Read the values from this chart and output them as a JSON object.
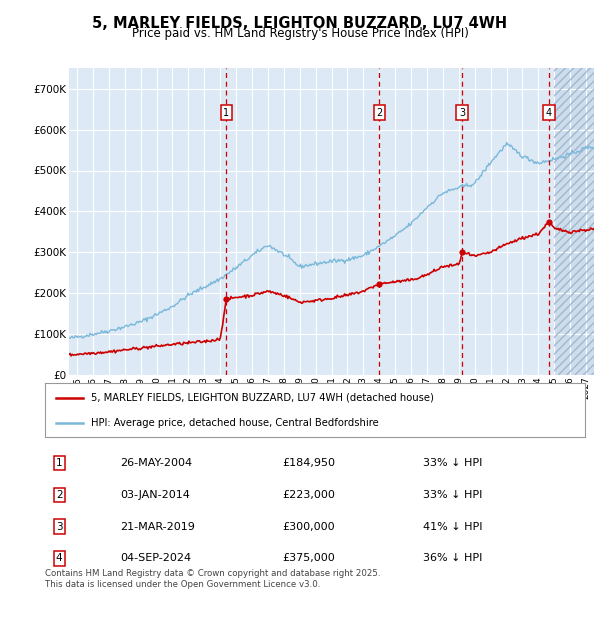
{
  "title": "5, MARLEY FIELDS, LEIGHTON BUZZARD, LU7 4WH",
  "subtitle": "Price paid vs. HM Land Registry's House Price Index (HPI)",
  "hpi_color": "#7ab8d9",
  "price_color": "#cc0000",
  "vline_color": "#cc0000",
  "background_color": "#ddeaf6",
  "ylabel_ticks": [
    "£0",
    "£100K",
    "£200K",
    "£300K",
    "£400K",
    "£500K",
    "£600K",
    "£700K"
  ],
  "ytick_values": [
    0,
    100000,
    200000,
    300000,
    400000,
    500000,
    600000,
    700000
  ],
  "ylim": [
    0,
    750000
  ],
  "xlim_start": 1994.5,
  "xlim_end": 2027.5,
  "future_shade_start": 2025.0,
  "transactions": [
    {
      "num": 1,
      "date": "26-MAY-2004",
      "year": 2004.39,
      "price": 184950,
      "pct": "33%",
      "dir": "↓"
    },
    {
      "num": 2,
      "date": "03-JAN-2014",
      "year": 2014.01,
      "price": 223000,
      "pct": "33%",
      "dir": "↓"
    },
    {
      "num": 3,
      "date": "21-MAR-2019",
      "year": 2019.21,
      "price": 300000,
      "pct": "41%",
      "dir": "↓"
    },
    {
      "num": 4,
      "date": "04-SEP-2024",
      "year": 2024.67,
      "price": 375000,
      "pct": "36%",
      "dir": "↓"
    }
  ],
  "legend_entries": [
    "5, MARLEY FIELDS, LEIGHTON BUZZARD, LU7 4WH (detached house)",
    "HPI: Average price, detached house, Central Bedfordshire"
  ],
  "footer": "Contains HM Land Registry data © Crown copyright and database right 2025.\nThis data is licensed under the Open Government Licence v3.0.",
  "xtick_years": [
    1995,
    1996,
    1997,
    1998,
    1999,
    2000,
    2001,
    2002,
    2003,
    2004,
    2005,
    2006,
    2007,
    2008,
    2009,
    2010,
    2011,
    2012,
    2013,
    2014,
    2015,
    2016,
    2017,
    2018,
    2019,
    2020,
    2021,
    2022,
    2023,
    2024,
    2025,
    2026,
    2027
  ]
}
